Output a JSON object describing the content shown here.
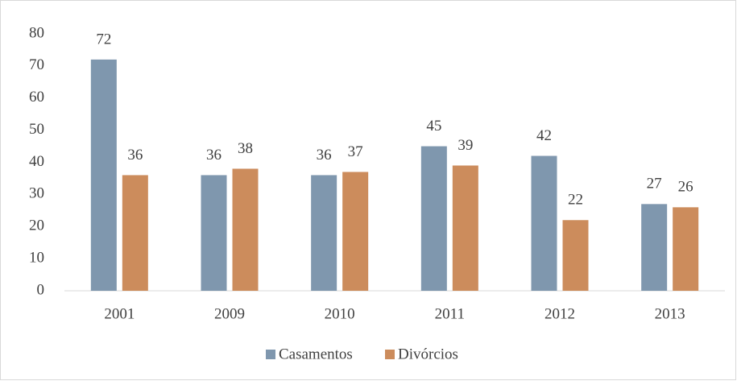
{
  "chart_data": {
    "type": "bar",
    "categories": [
      "2001",
      "2009",
      "2010",
      "2011",
      "2012",
      "2013"
    ],
    "series": [
      {
        "name": "Casamentos",
        "color": "#7f97ae",
        "values": [
          72,
          36,
          36,
          45,
          42,
          27
        ]
      },
      {
        "name": "Divórcios",
        "color": "#cc8c5c",
        "values": [
          36,
          38,
          37,
          39,
          22,
          26
        ]
      }
    ],
    "ylim": [
      0,
      80
    ],
    "yticks": [
      0,
      10,
      20,
      30,
      40,
      50,
      60,
      70,
      80
    ],
    "grid": false,
    "legend": "bottom"
  }
}
